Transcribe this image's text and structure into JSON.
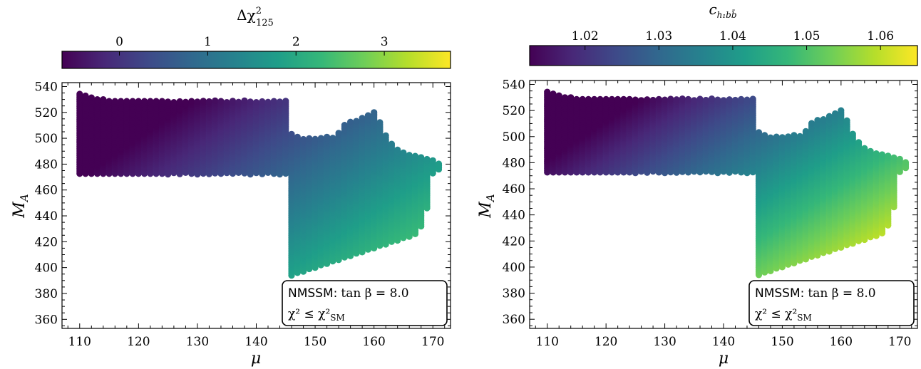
{
  "colormap": {
    "name": "viridis",
    "stops": [
      "#440154",
      "#482878",
      "#3e4a89",
      "#31688e",
      "#26828e",
      "#1f9e89",
      "#35b779",
      "#6ece58",
      "#b5de2b",
      "#fde725"
    ]
  },
  "chart_data": [
    {
      "type": "scatter",
      "xlabel": "μ",
      "ylabel": "MA",
      "ylabel_main": "M",
      "ylabel_sub": "A",
      "xlim": [
        107,
        173
      ],
      "ylim": [
        353,
        543
      ],
      "xticks": [
        110,
        120,
        130,
        140,
        150,
        160,
        170
      ],
      "yticks": [
        360,
        380,
        400,
        420,
        440,
        460,
        480,
        500,
        520,
        540
      ],
      "colorbar": {
        "label": "Δχ²₁₂₅",
        "label_main": "Δχ",
        "label_sup": "2",
        "label_sub": "125",
        "range": [
          -0.65,
          3.75
        ],
        "ticks": [
          0,
          1,
          2,
          3
        ],
        "position": "top"
      },
      "color_model": {
        "base": 1.0,
        "mu_coef": 0.042,
        "ma_coef": -0.0135,
        "mu_ref": 140,
        "ma_ref": 440
      },
      "region": {
        "x_step": 1.0,
        "columns": [
          [
            110,
            362,
            535
          ],
          [
            111,
            362,
            533
          ],
          [
            112,
            362,
            532
          ],
          [
            113,
            362,
            531
          ],
          [
            114,
            362,
            530
          ],
          [
            115,
            362,
            529
          ],
          [
            116,
            362,
            529
          ],
          [
            117,
            362,
            529
          ],
          [
            118,
            362,
            529
          ],
          [
            119,
            362,
            529
          ],
          [
            120,
            362,
            529
          ],
          [
            121,
            362,
            529
          ],
          [
            122,
            362,
            529
          ],
          [
            123,
            362,
            529
          ],
          [
            124,
            362,
            529
          ],
          [
            125,
            363,
            529
          ],
          [
            126,
            364,
            529
          ],
          [
            127,
            366,
            529
          ],
          [
            128,
            367,
            529
          ],
          [
            129,
            369,
            529
          ],
          [
            130,
            370,
            529
          ],
          [
            131,
            372,
            529
          ],
          [
            132,
            373,
            529
          ],
          [
            133,
            375,
            529
          ],
          [
            134,
            376,
            529
          ],
          [
            135,
            378,
            529
          ],
          [
            136,
            379,
            529
          ],
          [
            137,
            381,
            529
          ],
          [
            138,
            382,
            529
          ],
          [
            139,
            384,
            529
          ],
          [
            140,
            385,
            529
          ],
          [
            141,
            387,
            529
          ],
          [
            142,
            388,
            529
          ],
          [
            143,
            390,
            529
          ],
          [
            144,
            391,
            529
          ],
          [
            145,
            393,
            529
          ],
          [
            146,
            394,
            504
          ],
          [
            147,
            396,
            501
          ],
          [
            148,
            397,
            500
          ],
          [
            149,
            399,
            500
          ],
          [
            150,
            400,
            500
          ],
          [
            151,
            402,
            500
          ],
          [
            152,
            403,
            501
          ],
          [
            153,
            405,
            501
          ],
          [
            154,
            406,
            505
          ],
          [
            155,
            408,
            511
          ],
          [
            156,
            409,
            513
          ],
          [
            157,
            411,
            514
          ],
          [
            158,
            412,
            516
          ],
          [
            159,
            414,
            518
          ],
          [
            160,
            415,
            521
          ],
          [
            161,
            417,
            513
          ],
          [
            162,
            418,
            502
          ],
          [
            163,
            420,
            496
          ],
          [
            164,
            421,
            492
          ],
          [
            165,
            423,
            489
          ],
          [
            166,
            424,
            488
          ],
          [
            167,
            426,
            487
          ],
          [
            168,
            432,
            486
          ],
          [
            169,
            446,
            485
          ],
          [
            170,
            473,
            483
          ],
          [
            171,
            476,
            481
          ]
        ],
        "holes": [
          {
            "x0": 110,
            "x1": 145,
            "y0": 362,
            "y1": 472
          }
        ]
      }
    },
    {
      "type": "scatter",
      "xlabel": "μ",
      "ylabel": "MA",
      "ylabel_main": "M",
      "ylabel_sub": "A",
      "xlim": [
        107,
        173
      ],
      "ylim": [
        353,
        543
      ],
      "xticks": [
        110,
        120,
        130,
        140,
        150,
        160,
        170
      ],
      "yticks": [
        360,
        380,
        400,
        420,
        440,
        460,
        480,
        500,
        520,
        540
      ],
      "colorbar": {
        "label": "c_{h1 b b̄}",
        "label_main": "c",
        "label_sub": "h₁bb̄",
        "range": [
          1.0125,
          1.065
        ],
        "ticks": [
          1.02,
          1.03,
          1.04,
          1.05,
          1.06
        ],
        "tick_labels": [
          "1.02",
          "1.03",
          "1.04",
          "1.05",
          "1.06"
        ],
        "position": "top"
      },
      "color_model": {
        "base": 1.04,
        "mu_coef": 0.00062,
        "ma_coef": -0.00021,
        "mu_ref": 140,
        "ma_ref": 440
      },
      "region": "same as panel 1"
    }
  ],
  "annotation": {
    "line1_sans": "NMSSM:",
    "line1_math": "tan β = 8.0",
    "line2": "χ² ≤ χ²",
    "line2_sub": "SM"
  }
}
